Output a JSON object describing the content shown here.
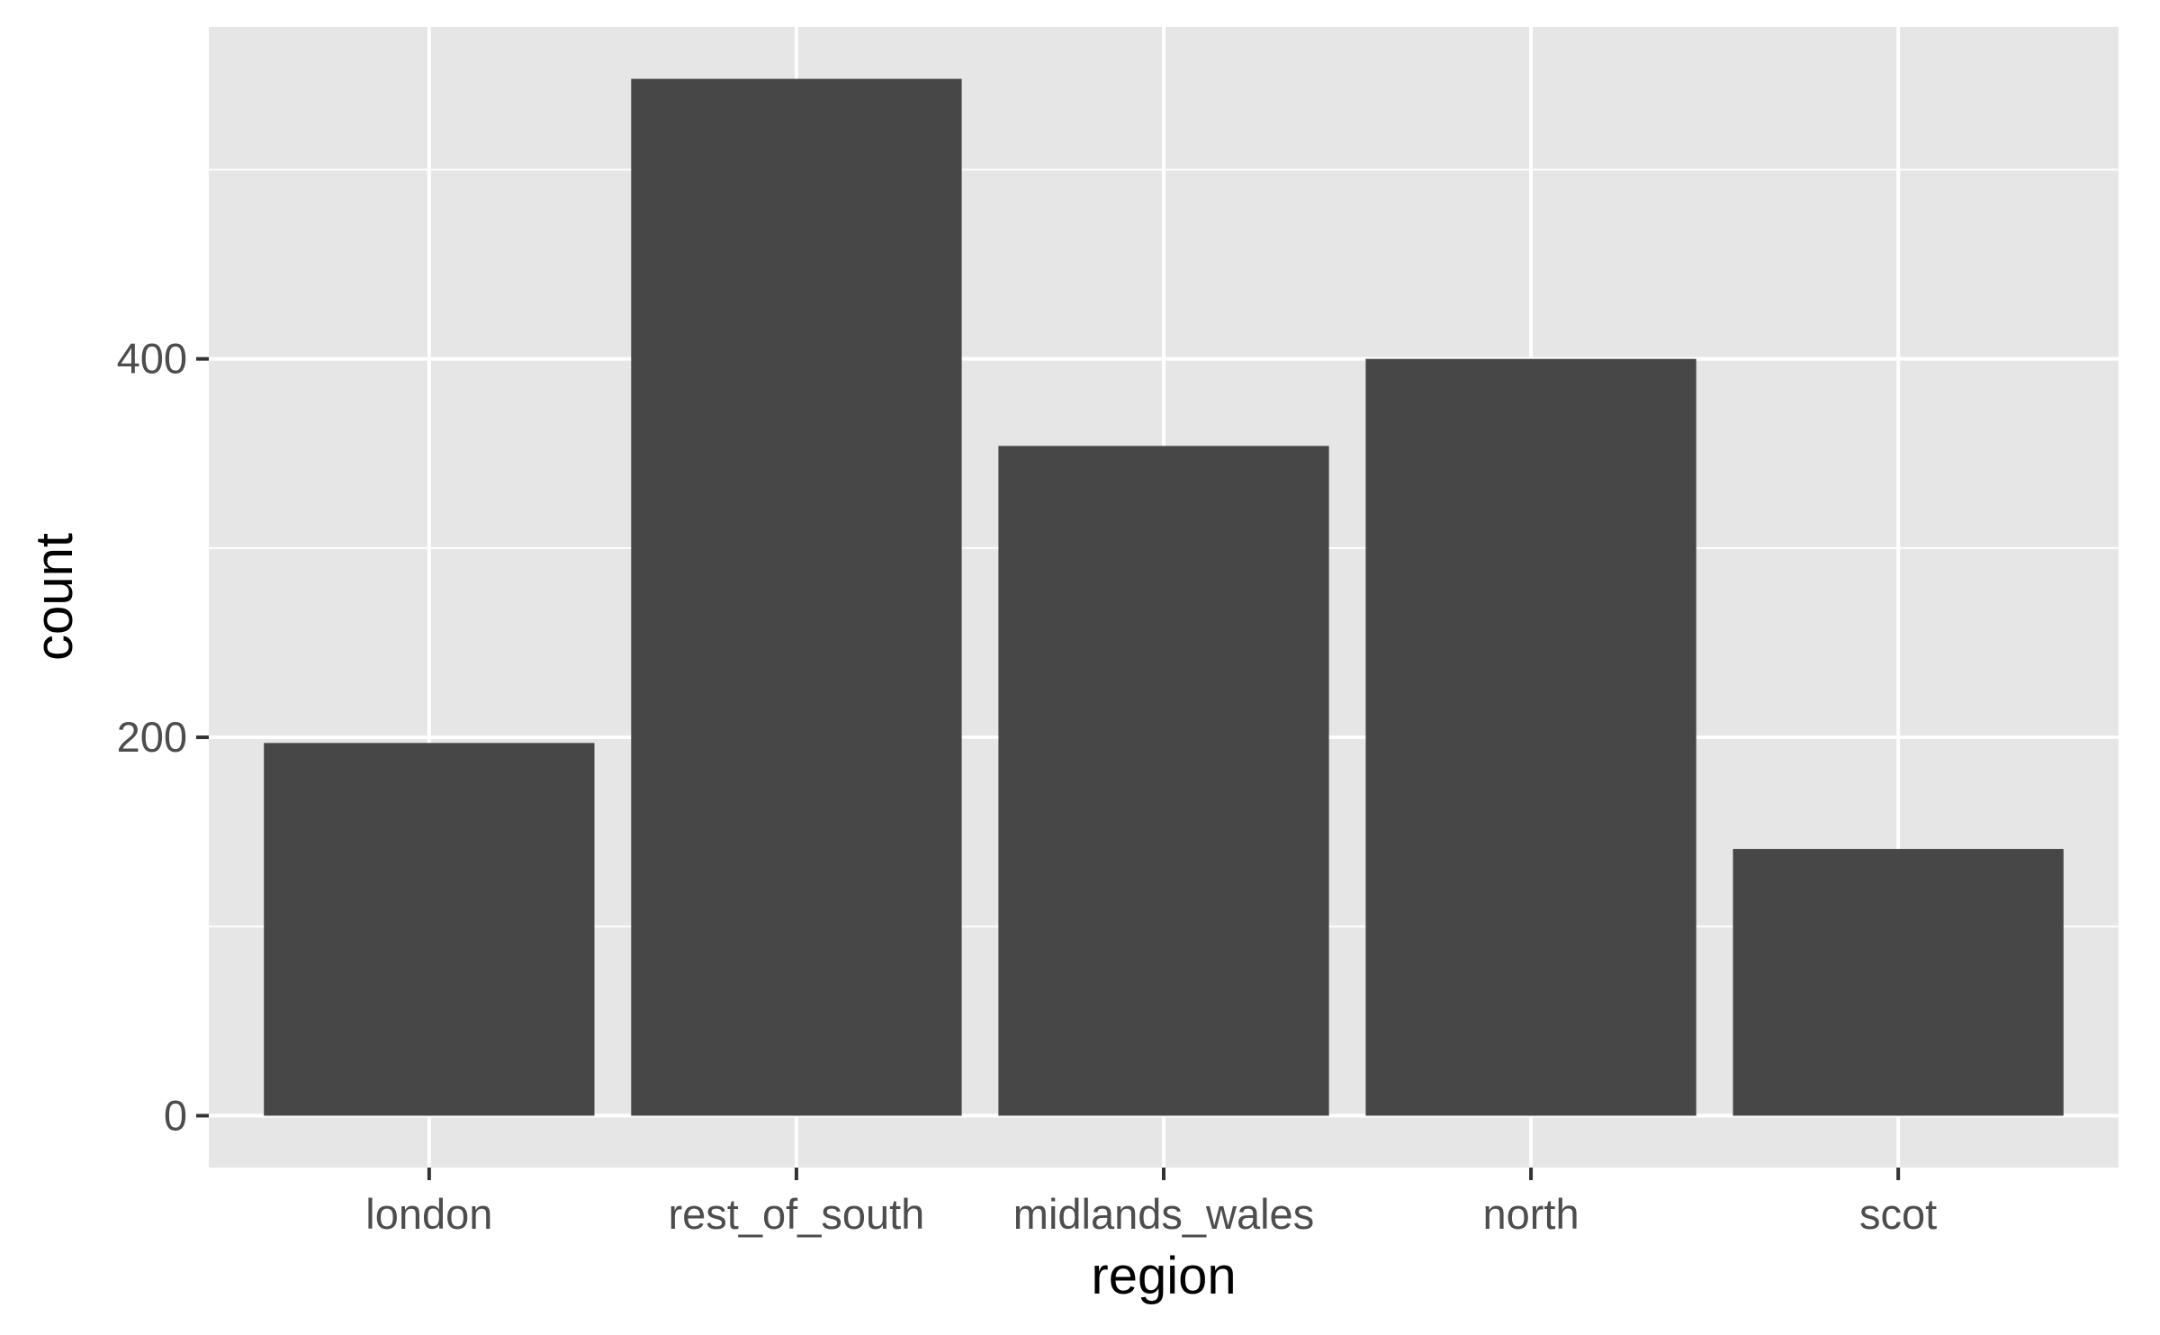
{
  "chart_data": {
    "type": "bar",
    "categories": [
      "london",
      "rest_of_south",
      "midlands_wales",
      "north",
      "scot"
    ],
    "values": [
      197,
      548,
      354,
      400,
      141
    ],
    "xlabel": "region",
    "ylabel": "count",
    "yticks": [
      0,
      200,
      400
    ],
    "ylim": [
      -27.4,
      575.4
    ],
    "grid": true,
    "colors": {
      "bar": "#474747",
      "panel": "#e6e6e6",
      "grid": "#ffffff",
      "tick": "#333333"
    }
  }
}
